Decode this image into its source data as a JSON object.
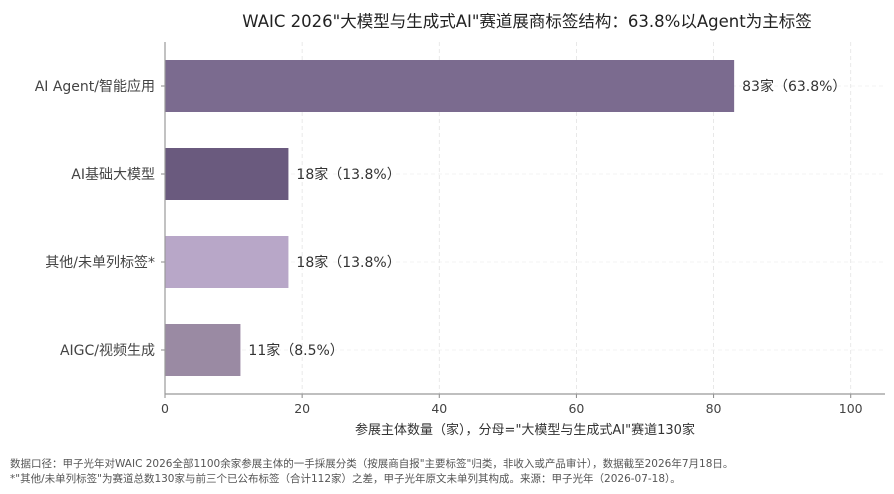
{
  "chart_data": {
    "type": "bar",
    "orientation": "horizontal",
    "title": "WAIC 2026\"大模型与生成式AI\"赛道展商标签结构：63.8%以Agent为主标签",
    "xlabel": "参展主体数量（家），分母=\"大模型与生成式AI\"赛道130家",
    "ylabel": "",
    "xlim": [
      0,
      105
    ],
    "xticks": [
      0,
      20,
      40,
      60,
      80,
      100
    ],
    "grid": true,
    "categories": [
      "AI Agent/智能应用",
      "AI基础大模型",
      "其他/未单列标签*",
      "AIGC/视频生成"
    ],
    "values": [
      83,
      18,
      18,
      11
    ],
    "data_labels": [
      "83家（63.8%）",
      "18家（13.8%）",
      "18家（13.8%）",
      "11家（8.5%）"
    ],
    "colors": [
      "#7b6b8f",
      "#6a5a7e",
      "#b8a7c8",
      "#9a8aa3"
    ]
  },
  "footnotes": [
    "数据口径：甲子光年对WAIC 2026全部1100余家参展主体的一手採展分类（按展商自报\"主要标签\"归类，非收入或产品审计），数据截至2026年7月18日。",
    "*\"其他/未单列标签\"为赛道总数130家与前三个已公布标签（合计112家）之差，甲子光年原文未单列其构成。来源：甲子光年（2026-07-18）。"
  ]
}
